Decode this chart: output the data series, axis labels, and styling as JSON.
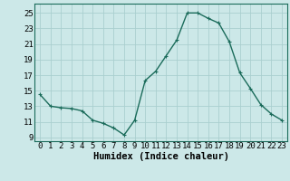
{
  "x": [
    0,
    1,
    2,
    3,
    4,
    5,
    6,
    7,
    8,
    9,
    10,
    11,
    12,
    13,
    14,
    15,
    16,
    17,
    18,
    19,
    20,
    21,
    22,
    23
  ],
  "y": [
    14.5,
    13.0,
    12.8,
    12.7,
    12.4,
    11.2,
    10.8,
    10.2,
    9.3,
    11.2,
    16.3,
    17.5,
    19.5,
    21.5,
    25.0,
    25.0,
    24.3,
    23.7,
    21.3,
    17.3,
    15.3,
    13.2,
    12.0,
    11.2
  ],
  "line_color": "#1a6b5a",
  "marker": "+",
  "marker_size": 3,
  "bg_color": "#cce8e8",
  "grid_color": "#aacfcf",
  "xlabel": "Humidex (Indice chaleur)",
  "xlim": [
    -0.5,
    23.5
  ],
  "ylim": [
    8.5,
    26.2
  ],
  "yticks": [
    9,
    11,
    13,
    15,
    17,
    19,
    21,
    23,
    25
  ],
  "xticks": [
    0,
    1,
    2,
    3,
    4,
    5,
    6,
    7,
    8,
    9,
    10,
    11,
    12,
    13,
    14,
    15,
    16,
    17,
    18,
    19,
    20,
    21,
    22,
    23
  ],
  "tick_fontsize": 6.5,
  "xlabel_fontsize": 7.5,
  "line_width": 1.0
}
